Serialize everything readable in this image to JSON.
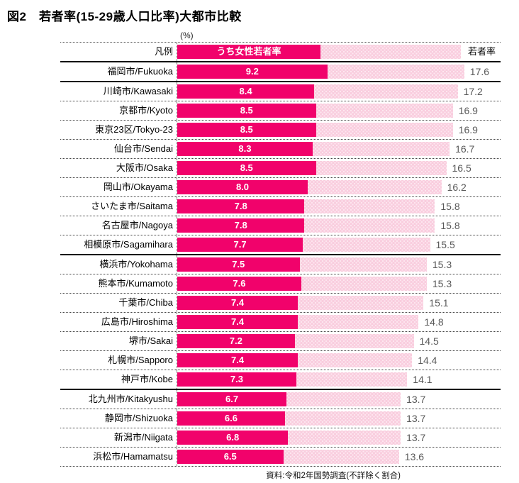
{
  "title": "図2　若者率(15-29歳人口比率)大都市比較",
  "unit_label": "(%)",
  "legend": {
    "row_label": "凡例",
    "female_label": "うち女性若者率",
    "total_label": "若者率"
  },
  "source": "資料:令和2年国勢調査(不詳除く割合)",
  "colors": {
    "female_bar": "#f1026b",
    "total_bar": "#f9cdde",
    "total_bar_dot": "#fde7f0",
    "value_text": "#595959"
  },
  "chart_data": {
    "type": "bar",
    "orientation": "horizontal",
    "unit": "%",
    "title": "図2　若者率(15-29歳人口比率)大都市比較",
    "source": "資料:令和2年国勢調査(不詳除く割合)",
    "xlim": [
      0,
      19.7
    ],
    "grid": false,
    "legend_position": "top-row",
    "categories": [
      "福岡市/Fukuoka",
      "川崎市/Kawasaki",
      "京都市/Kyoto",
      "東京23区/Tokyo-23",
      "仙台市/Sendai",
      "大阪市/Osaka",
      "岡山市/Okayama",
      "さいたま市/Saitama",
      "名古屋市/Nagoya",
      "相模原市/Sagamihara",
      "横浜市/Yokohama",
      "熊本市/Kumamoto",
      "千葉市/Chiba",
      "広島市/Hiroshima",
      "堺市/Sakai",
      "札幌市/Sapporo",
      "神戸市/Kobe",
      "北九州市/Kitakyushu",
      "静岡市/Shizuoka",
      "新潟市/Niigata",
      "浜松市/Hamamatsu"
    ],
    "series": [
      {
        "name": "うち女性若者率",
        "values": [
          9.2,
          8.4,
          8.5,
          8.5,
          8.3,
          8.5,
          8.0,
          7.8,
          7.8,
          7.7,
          7.5,
          7.6,
          7.4,
          7.4,
          7.2,
          7.4,
          7.3,
          6.7,
          6.6,
          6.8,
          6.5
        ]
      },
      {
        "name": "若者率",
        "values": [
          17.6,
          17.2,
          16.9,
          16.9,
          16.7,
          16.5,
          16.2,
          15.8,
          15.8,
          15.5,
          15.3,
          15.3,
          15.1,
          14.8,
          14.5,
          14.4,
          14.1,
          13.7,
          13.7,
          13.7,
          13.6
        ]
      }
    ]
  }
}
